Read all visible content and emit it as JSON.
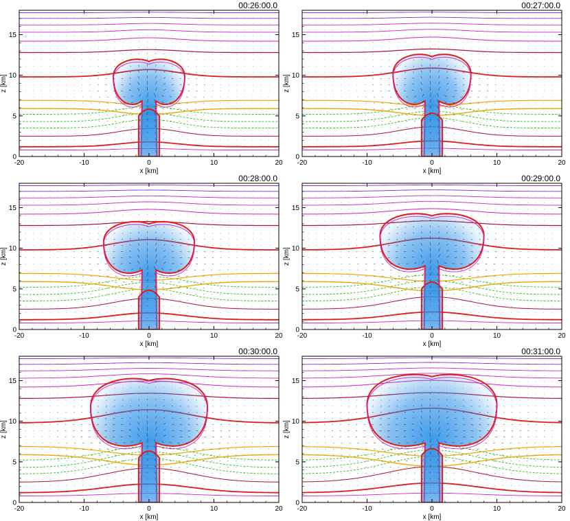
{
  "chart_data": [
    {
      "type": "heatmap",
      "timestamp": "00:26:00.0",
      "xlabel": "x [km]",
      "ylabel": "z [km]",
      "xlim": [
        -20,
        20
      ],
      "ylim": [
        0,
        18
      ],
      "x_ticks": [
        -20,
        -10,
        0,
        10,
        20
      ],
      "y_ticks": [
        0,
        5,
        10,
        15
      ],
      "cloud_top_km": 12.2,
      "cloud_width_km": 5.5,
      "updraft_top_km": 6.0,
      "anvil_base_km": 7.5,
      "spread_km": 1.5
    },
    {
      "type": "heatmap",
      "timestamp": "00:27:00.0",
      "xlabel": "x [km]",
      "ylabel": "z [km]",
      "xlim": [
        -20,
        20
      ],
      "ylim": [
        0,
        18
      ],
      "x_ticks": [
        -20,
        -10,
        0,
        10,
        20
      ],
      "y_ticks": [
        0,
        5,
        10,
        15
      ],
      "cloud_top_km": 12.8,
      "cloud_width_km": 6.0,
      "updraft_top_km": 5.5,
      "anvil_base_km": 7.5,
      "spread_km": 2.0
    },
    {
      "type": "heatmap",
      "timestamp": "00:28:00.0",
      "xlabel": "x [km]",
      "ylabel": "z [km]",
      "xlim": [
        -20,
        20
      ],
      "ylim": [
        0,
        18
      ],
      "x_ticks": [
        -20,
        -10,
        0,
        10,
        20
      ],
      "y_ticks": [
        0,
        5,
        10,
        15
      ],
      "cloud_top_km": 13.5,
      "cloud_width_km": 7.0,
      "updraft_top_km": 5.0,
      "anvil_base_km": 8.0,
      "spread_km": 2.5
    },
    {
      "type": "heatmap",
      "timestamp": "00:29:00.0",
      "xlabel": "x [km]",
      "ylabel": "z [km]",
      "xlim": [
        -20,
        20
      ],
      "ylim": [
        0,
        18
      ],
      "x_ticks": [
        -20,
        -10,
        0,
        10,
        20
      ],
      "y_ticks": [
        0,
        5,
        10,
        15
      ],
      "cloud_top_km": 14.5,
      "cloud_width_km": 8.0,
      "updraft_top_km": 6.0,
      "anvil_base_km": 8.5,
      "spread_km": 3.0
    },
    {
      "type": "heatmap",
      "timestamp": "00:30:00.0",
      "xlabel": "x [km]",
      "ylabel": "z [km]",
      "xlim": [
        -20,
        20
      ],
      "ylim": [
        0,
        18
      ],
      "x_ticks": [
        -20,
        -10,
        0,
        10,
        20
      ],
      "y_ticks": [
        0,
        5,
        10,
        15
      ],
      "cloud_top_km": 15.5,
      "cloud_width_km": 9.0,
      "updraft_top_km": 6.5,
      "anvil_base_km": 8.0,
      "spread_km": 3.5
    },
    {
      "type": "heatmap",
      "timestamp": "00:31:00.0",
      "xlabel": "x [km]",
      "ylabel": "z [km]",
      "xlim": [
        -20,
        20
      ],
      "ylim": [
        0,
        18
      ],
      "x_ticks": [
        -20,
        -10,
        0,
        10,
        20
      ],
      "y_ticks": [
        0,
        5,
        10,
        15
      ],
      "cloud_top_km": 16.0,
      "cloud_width_km": 10.0,
      "updraft_top_km": 6.8,
      "anvil_base_km": 8.0,
      "spread_km": 4.0
    }
  ],
  "colors": {
    "cloud": "#2a8fe8",
    "isotherm_warm": "#e01c1c",
    "isotherm_orange": "#f0a800",
    "isotherm_green": "#23c81e",
    "isotherm_cold": "#d020c8",
    "isotherm_purple": "#8a2be2",
    "arrows": "#222222",
    "dark_red": "#b01030"
  }
}
